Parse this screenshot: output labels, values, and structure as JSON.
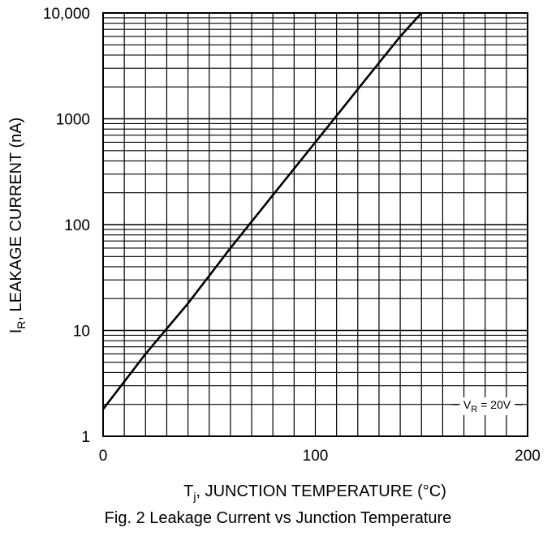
{
  "chart_data": {
    "type": "line",
    "title": "",
    "caption": "Fig. 2  Leakage Current vs Junction Temperature",
    "xlabel": {
      "main": "T",
      "sub": "j",
      "rest": ", JUNCTION TEMPERATURE (°C)"
    },
    "ylabel": {
      "main": "I",
      "sub": "R",
      "rest": ", LEAKAGE CURRENT (nA)"
    },
    "xlim": [
      0,
      200
    ],
    "ylim": [
      1,
      10000
    ],
    "yscale": "log",
    "grid": true,
    "x_minor_step": 10,
    "x_ticks": [
      {
        "value": 0,
        "label": "0"
      },
      {
        "value": 100,
        "label": "100"
      },
      {
        "value": 200,
        "label": "200"
      }
    ],
    "y_ticks": [
      {
        "value": 1,
        "label": "1"
      },
      {
        "value": 10,
        "label": "10"
      },
      {
        "value": 100,
        "label": "100"
      },
      {
        "value": 1000,
        "label": "1000"
      },
      {
        "value": 10000,
        "label": "10,000"
      }
    ],
    "annotation": {
      "main": "V",
      "sub": "R",
      "rest": " = 20V",
      "position": "bottom-right"
    },
    "series": [
      {
        "x": [
          0,
          20,
          40,
          60,
          80,
          100,
          120,
          140,
          150
        ],
        "y": [
          1.8,
          6,
          18,
          60,
          190,
          600,
          1900,
          6000,
          10000
        ]
      }
    ],
    "line_color": "#000000"
  }
}
